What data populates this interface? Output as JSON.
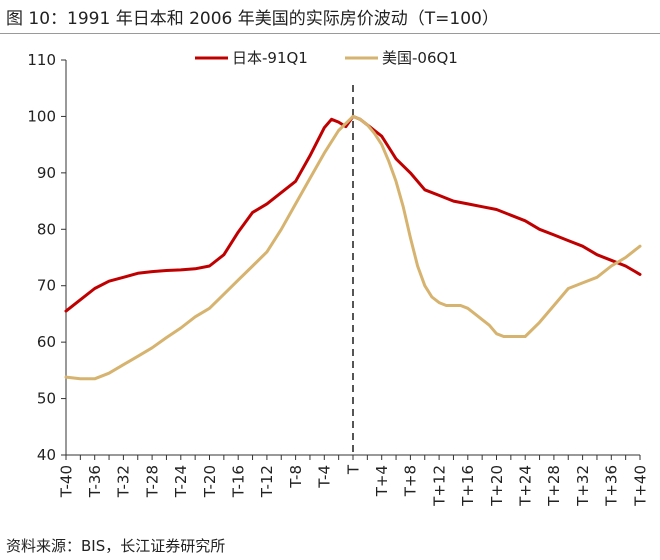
{
  "title": "图 10：1991 年日本和 2006 年美国的实际房价波动（T=100）",
  "source": "资料来源：BIS，长江证券研究所",
  "colors": {
    "japan": "#c00000",
    "us": "#d6b36e",
    "axis": "#333333",
    "ref_line": "#555555"
  },
  "chart_data": {
    "type": "line",
    "title": "",
    "xlabel": "",
    "ylabel": "",
    "ylim": [
      40,
      110
    ],
    "yticks": [
      40,
      50,
      60,
      70,
      80,
      90,
      100,
      110
    ],
    "x_range": [
      -40,
      40
    ],
    "x_tick_labels": [
      "T-40",
      "T-36",
      "T-32",
      "T-28",
      "T-24",
      "T-20",
      "T-16",
      "T-12",
      "T-8",
      "T-4",
      "T",
      "T+4",
      "T+8",
      "T+12",
      "T+16",
      "T+20",
      "T+24",
      "T+28",
      "T+32",
      "T+36",
      "T+40"
    ],
    "reference_line": {
      "x": 0,
      "style": "dashed"
    },
    "legend_position": "top-center",
    "grid": false,
    "series": [
      {
        "name": "日本-91Q1",
        "x": [
          -40,
          -38,
          -36,
          -34,
          -32,
          -30,
          -28,
          -26,
          -24,
          -22,
          -20,
          -18,
          -16,
          -14,
          -12,
          -10,
          -8,
          -6,
          -4,
          -3,
          -2,
          -1,
          0,
          1,
          2,
          3,
          4,
          5,
          6,
          8,
          10,
          12,
          14,
          16,
          18,
          20,
          22,
          24,
          26,
          28,
          30,
          32,
          34,
          36,
          38,
          40
        ],
        "y": [
          65.5,
          67.5,
          69.5,
          70.8,
          71.5,
          72.2,
          72.5,
          72.7,
          72.8,
          73.0,
          73.5,
          75.5,
          79.5,
          83.0,
          84.5,
          86.5,
          88.5,
          93.0,
          98.0,
          99.5,
          99.0,
          98.2,
          100,
          99.5,
          98.5,
          97.5,
          96.5,
          94.5,
          92.5,
          90.0,
          87.0,
          86.0,
          85.0,
          84.5,
          84.0,
          83.5,
          82.5,
          81.5,
          80.0,
          79.0,
          78.0,
          77.0,
          75.5,
          74.5,
          73.5,
          72.0
        ]
      },
      {
        "name": "美国-06Q1",
        "x": [
          -40,
          -38,
          -36,
          -34,
          -32,
          -30,
          -28,
          -26,
          -24,
          -22,
          -20,
          -18,
          -16,
          -14,
          -12,
          -10,
          -8,
          -6,
          -4,
          -2,
          0,
          1,
          2,
          3,
          4,
          5,
          6,
          7,
          8,
          9,
          10,
          11,
          12,
          13,
          14,
          15,
          16,
          17,
          18,
          19,
          20,
          21,
          22,
          24,
          26,
          28,
          30,
          32,
          34,
          36,
          38,
          40
        ],
        "y": [
          53.8,
          53.5,
          53.5,
          54.5,
          56.0,
          57.5,
          59.0,
          60.8,
          62.5,
          64.5,
          66.0,
          68.5,
          71.0,
          73.5,
          76.0,
          80.0,
          84.5,
          89.0,
          93.5,
          97.5,
          100,
          99.5,
          98.5,
          97.0,
          95.0,
          92.0,
          88.5,
          84.0,
          78.5,
          73.5,
          70.0,
          68.0,
          67.0,
          66.5,
          66.5,
          66.5,
          66.0,
          65.0,
          64.0,
          63.0,
          61.5,
          61.0,
          61.0,
          61.0,
          63.5,
          66.5,
          69.5,
          70.5,
          71.5,
          73.5,
          75.0,
          77.0
        ]
      }
    ]
  }
}
